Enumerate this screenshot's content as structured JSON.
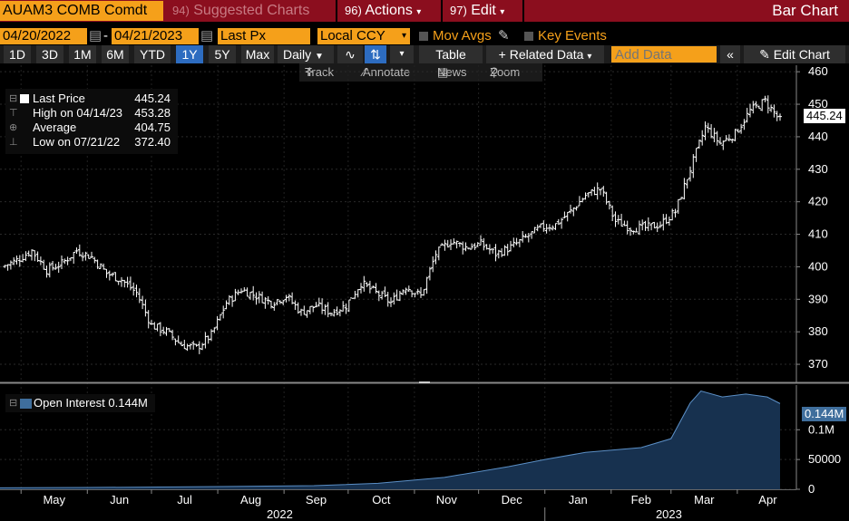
{
  "topbar": {
    "ticker": "AUAM3 COMB Comdt",
    "suggested_num": "94)",
    "suggested_label": "Suggested Charts",
    "actions_num": "96)",
    "actions_label": "Actions",
    "edit_num": "97)",
    "edit_label": "Edit",
    "chart_type": "Bar Chart"
  },
  "options": {
    "start_date": "04/20/2022",
    "end_date": "04/21/2023",
    "field": "Last Px",
    "currency": "Local CCY",
    "mov_avgs": "Mov Avgs",
    "key_events": "Key Events"
  },
  "toolbar": {
    "periods": [
      "1D",
      "3D",
      "1M",
      "6M",
      "YTD",
      "1Y",
      "5Y",
      "Max"
    ],
    "active_period": "1Y",
    "frequency": "Daily",
    "table": "Table",
    "related_data": "Related Data",
    "add_data_placeholder": "Add Data",
    "edit_chart": "Edit Chart"
  },
  "subtoolbar": {
    "track": "Track",
    "annotate": "Annotate",
    "news": "News",
    "zoom": "Zoom"
  },
  "legend": {
    "last_price_label": "Last Price",
    "last_price_value": "445.24",
    "high_label": "High on 04/14/23",
    "high_value": "453.28",
    "average_label": "Average",
    "average_value": "404.75",
    "low_label": "Low on 07/21/22",
    "low_value": "372.40"
  },
  "oi_legend": {
    "label": "Open Interest",
    "value": "0.144M"
  },
  "price_tag": "445.24",
  "oi_tag": "0.144M",
  "colors": {
    "accent_orange": "#f5a01a",
    "header_red": "#8b0e1e",
    "active_blue": "#2d6cc0",
    "oi_fill": "#17314f",
    "oi_line": "#5b8fc6"
  },
  "chart_data": [
    {
      "type": "bar",
      "description": "OHLC daily bars, Last Px",
      "y_ticks": [
        370,
        380,
        390,
        400,
        410,
        420,
        430,
        440,
        450,
        460
      ],
      "ylim": [
        365,
        462
      ],
      "x_months": [
        "May",
        "Jun",
        "Jul",
        "Aug",
        "Sep",
        "Oct",
        "Nov",
        "Dec",
        "Jan",
        "Feb",
        "Mar",
        "Apr"
      ],
      "x_years": [
        "2022",
        "2023"
      ],
      "weekly_close": [
        {
          "date": "2022-04-22",
          "close": 400
        },
        {
          "date": "2022-04-29",
          "close": 402
        },
        {
          "date": "2022-05-06",
          "close": 405
        },
        {
          "date": "2022-05-13",
          "close": 399
        },
        {
          "date": "2022-05-20",
          "close": 401
        },
        {
          "date": "2022-05-27",
          "close": 405
        },
        {
          "date": "2022-06-03",
          "close": 403
        },
        {
          "date": "2022-06-10",
          "close": 398
        },
        {
          "date": "2022-06-17",
          "close": 396
        },
        {
          "date": "2022-06-24",
          "close": 392
        },
        {
          "date": "2022-07-01",
          "close": 382
        },
        {
          "date": "2022-07-08",
          "close": 380
        },
        {
          "date": "2022-07-15",
          "close": 376
        },
        {
          "date": "2022-07-22",
          "close": 375
        },
        {
          "date": "2022-07-29",
          "close": 379
        },
        {
          "date": "2022-08-05",
          "close": 389
        },
        {
          "date": "2022-08-12",
          "close": 393
        },
        {
          "date": "2022-08-19",
          "close": 391
        },
        {
          "date": "2022-08-26",
          "close": 389
        },
        {
          "date": "2022-09-02",
          "close": 391
        },
        {
          "date": "2022-09-09",
          "close": 386
        },
        {
          "date": "2022-09-16",
          "close": 388
        },
        {
          "date": "2022-09-23",
          "close": 386
        },
        {
          "date": "2022-09-30",
          "close": 388
        },
        {
          "date": "2022-10-07",
          "close": 395
        },
        {
          "date": "2022-10-14",
          "close": 392
        },
        {
          "date": "2022-10-21",
          "close": 389
        },
        {
          "date": "2022-10-28",
          "close": 394
        },
        {
          "date": "2022-11-04",
          "close": 391
        },
        {
          "date": "2022-11-11",
          "close": 404
        },
        {
          "date": "2022-11-18",
          "close": 408
        },
        {
          "date": "2022-11-25",
          "close": 406
        },
        {
          "date": "2022-12-02",
          "close": 407
        },
        {
          "date": "2022-12-09",
          "close": 404
        },
        {
          "date": "2022-12-16",
          "close": 406
        },
        {
          "date": "2022-12-23",
          "close": 409
        },
        {
          "date": "2022-12-30",
          "close": 412
        },
        {
          "date": "2023-01-06",
          "close": 413
        },
        {
          "date": "2023-01-13",
          "close": 417
        },
        {
          "date": "2023-01-20",
          "close": 422
        },
        {
          "date": "2023-01-27",
          "close": 424
        },
        {
          "date": "2023-02-03",
          "close": 414
        },
        {
          "date": "2023-02-10",
          "close": 412
        },
        {
          "date": "2023-02-17",
          "close": 412
        },
        {
          "date": "2023-02-24",
          "close": 413
        },
        {
          "date": "2023-03-03",
          "close": 417
        },
        {
          "date": "2023-03-10",
          "close": 430
        },
        {
          "date": "2023-03-17",
          "close": 443
        },
        {
          "date": "2023-03-24",
          "close": 438
        },
        {
          "date": "2023-03-31",
          "close": 441
        },
        {
          "date": "2023-04-07",
          "close": 448
        },
        {
          "date": "2023-04-14",
          "close": 451
        },
        {
          "date": "2023-04-21",
          "close": 445
        }
      ]
    },
    {
      "type": "area",
      "name": "Open Interest",
      "y_ticks": [
        {
          "value": 0,
          "label": "0"
        },
        {
          "value": 50000,
          "label": "50000"
        },
        {
          "value": 100000,
          "label": "0.1M"
        }
      ],
      "ylim": [
        0,
        175000
      ],
      "monthly": [
        {
          "date": "2022-04-20",
          "value": 2500
        },
        {
          "date": "2022-06-01",
          "value": 3000
        },
        {
          "date": "2022-08-01",
          "value": 4500
        },
        {
          "date": "2022-09-15",
          "value": 6000
        },
        {
          "date": "2022-10-15",
          "value": 10000
        },
        {
          "date": "2022-11-15",
          "value": 20000
        },
        {
          "date": "2022-12-15",
          "value": 38000
        },
        {
          "date": "2023-01-01",
          "value": 50000
        },
        {
          "date": "2023-01-20",
          "value": 62000
        },
        {
          "date": "2023-02-15",
          "value": 70000
        },
        {
          "date": "2023-03-01",
          "value": 85000
        },
        {
          "date": "2023-03-10",
          "value": 145000
        },
        {
          "date": "2023-03-15",
          "value": 165000
        },
        {
          "date": "2023-03-25",
          "value": 155000
        },
        {
          "date": "2023-04-05",
          "value": 160000
        },
        {
          "date": "2023-04-15",
          "value": 155000
        },
        {
          "date": "2023-04-21",
          "value": 144000
        }
      ]
    }
  ]
}
